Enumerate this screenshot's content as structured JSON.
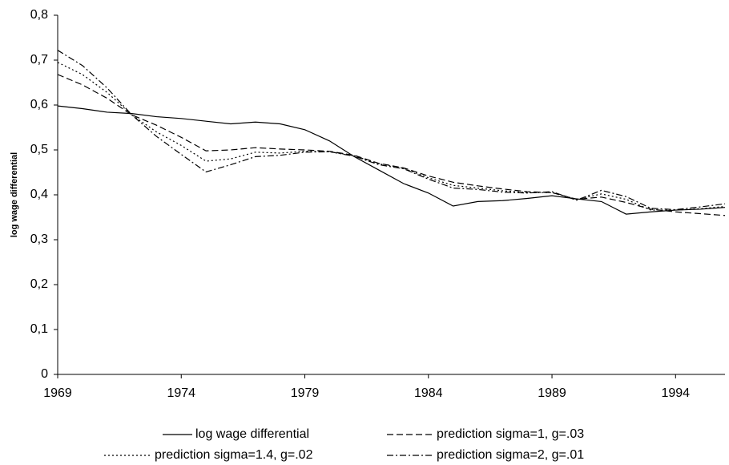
{
  "chart_data": {
    "type": "line",
    "y_label": "log wage differential",
    "x": [
      1969,
      1970,
      1971,
      1972,
      1973,
      1974,
      1975,
      1976,
      1977,
      1978,
      1979,
      1980,
      1981,
      1982,
      1983,
      1984,
      1985,
      1986,
      1987,
      1988,
      1989,
      1990,
      1991,
      1992,
      1993,
      1994,
      1995,
      1996
    ],
    "series": [
      {
        "name": "log wage differential",
        "color": "#000000",
        "style": "solid",
        "values": [
          0.598,
          0.592,
          0.584,
          0.581,
          0.574,
          0.57,
          0.564,
          0.558,
          0.562,
          0.558,
          0.545,
          0.52,
          0.485,
          0.455,
          0.425,
          0.404,
          0.375,
          0.385,
          0.387,
          0.392,
          0.398,
          0.391,
          0.385,
          0.357,
          0.362,
          0.366,
          0.368,
          0.372
        ]
      },
      {
        "name": "prediction sigma=1, g=.03",
        "color": "#000000",
        "style": "dashed",
        "values": [
          0.668,
          0.645,
          0.615,
          0.578,
          0.555,
          0.528,
          0.498,
          0.5,
          0.505,
          0.502,
          0.5,
          0.497,
          0.488,
          0.47,
          0.46,
          0.442,
          0.428,
          0.42,
          0.413,
          0.407,
          0.405,
          0.39,
          0.395,
          0.383,
          0.368,
          0.362,
          0.358,
          0.354
        ]
      },
      {
        "name": "prediction sigma=1.4, g=.02",
        "color": "#000000",
        "style": "dotted",
        "values": [
          0.695,
          0.668,
          0.628,
          0.578,
          0.54,
          0.51,
          0.475,
          0.48,
          0.495,
          0.493,
          0.497,
          0.496,
          0.487,
          0.469,
          0.459,
          0.438,
          0.421,
          0.415,
          0.409,
          0.405,
          0.405,
          0.39,
          0.402,
          0.39,
          0.366,
          0.366,
          0.369,
          0.374
        ]
      },
      {
        "name": "prediction sigma=2, g=.01",
        "color": "#000000",
        "style": "dashdot",
        "values": [
          0.722,
          0.688,
          0.638,
          0.578,
          0.53,
          0.49,
          0.451,
          0.467,
          0.485,
          0.488,
          0.495,
          0.496,
          0.486,
          0.467,
          0.458,
          0.435,
          0.415,
          0.412,
          0.406,
          0.404,
          0.407,
          0.388,
          0.41,
          0.396,
          0.37,
          0.367,
          0.373,
          0.38
        ]
      }
    ],
    "xlim": [
      1969,
      1996
    ],
    "xticks": [
      1969,
      1974,
      1979,
      1984,
      1989,
      1994
    ],
    "ylim": [
      0,
      0.8
    ],
    "yticks": [
      0,
      {
        "value": 0.1,
        "label": "0,1"
      },
      {
        "value": 0.2,
        "label": "0,2"
      },
      {
        "value": 0.3,
        "label": "0,3"
      },
      {
        "value": 0.4,
        "label": "0,4"
      },
      {
        "value": 0.5,
        "label": "0,5"
      },
      {
        "value": 0.6,
        "label": "0,6"
      },
      {
        "value": 0.7,
        "label": "0,7"
      },
      {
        "value": 0.8,
        "label": "0,8"
      }
    ],
    "legend": "bottom"
  }
}
